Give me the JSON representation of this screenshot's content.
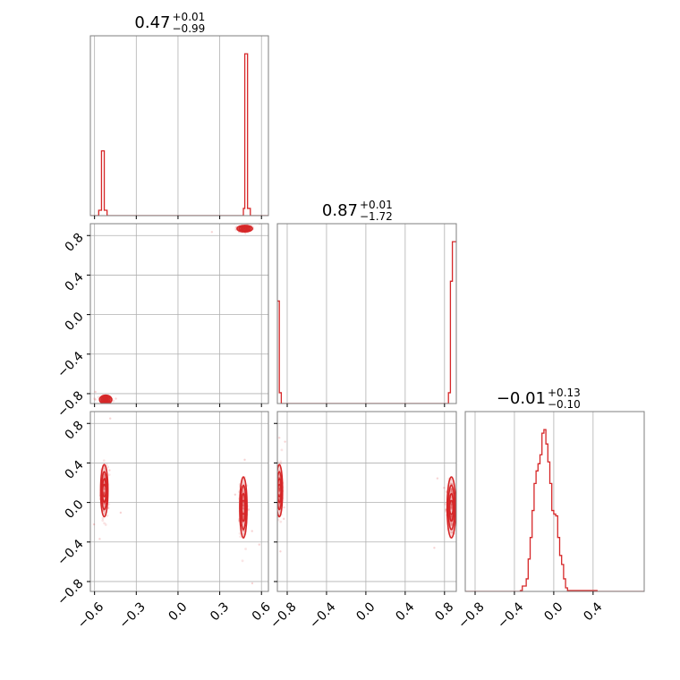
{
  "chart_data": {
    "type": "corner",
    "color": "#d62728",
    "grid": true,
    "panels": [
      {
        "id": "hist-0",
        "type": "histogram",
        "x_range": [
          -0.63,
          0.65
        ],
        "x_ticks": [
          -0.6,
          -0.3,
          0.0,
          0.3,
          0.6
        ],
        "title": {
          "value": "0.47",
          "plus": "+0.01",
          "minus": "−0.99"
        },
        "steps": [
          [
            -0.63,
            0
          ],
          [
            -0.57,
            0.03
          ],
          [
            -0.55,
            0.36
          ],
          [
            -0.53,
            0.03
          ],
          [
            -0.51,
            0
          ],
          [
            0.45,
            0
          ],
          [
            0.47,
            0.04
          ],
          [
            0.48,
            0.9
          ],
          [
            0.5,
            0.04
          ],
          [
            0.52,
            0
          ],
          [
            0.65,
            0
          ]
        ]
      },
      {
        "id": "scatter-1-0",
        "type": "contour",
        "x_range": [
          -0.63,
          0.65
        ],
        "y_range": [
          -0.9,
          0.92
        ],
        "x_ticks": [
          -0.6,
          -0.3,
          0.0,
          0.3,
          0.6
        ],
        "y_ticks": [
          -0.8,
          -0.4,
          0.0,
          0.4,
          0.8
        ],
        "y_tick_labels": [
          "−0.8",
          "−0.4",
          "0.0",
          "0.4",
          "0.8"
        ],
        "clusters": [
          {
            "x": -0.52,
            "y": -0.86,
            "sx": 0.02,
            "sy": 0.02
          },
          {
            "x": 0.48,
            "y": 0.87,
            "sx": 0.025,
            "sy": 0.015
          }
        ]
      },
      {
        "id": "hist-1",
        "type": "histogram",
        "x_range": [
          -0.9,
          0.92
        ],
        "x_ticks": [
          -0.8,
          -0.4,
          0.0,
          0.4,
          0.8
        ],
        "title": {
          "value": "0.87",
          "plus": "+0.01",
          "minus": "−1.72"
        },
        "steps": [
          [
            -0.9,
            0.57
          ],
          [
            -0.88,
            0.06
          ],
          [
            -0.86,
            0
          ],
          [
            0.84,
            0
          ],
          [
            0.84,
            0.06
          ],
          [
            0.86,
            0.68
          ],
          [
            0.88,
            0.9
          ],
          [
            0.92,
            0.9
          ]
        ]
      },
      {
        "id": "scatter-2-0",
        "type": "contour",
        "x_range": [
          -0.63,
          0.65
        ],
        "y_range": [
          -0.9,
          0.92
        ],
        "x_ticks": [
          -0.6,
          -0.3,
          0.0,
          0.3,
          0.6
        ],
        "x_tick_labels": [
          "−0.6",
          "−0.3",
          "0.0",
          "0.3",
          "0.6"
        ],
        "y_ticks": [
          -0.8,
          -0.4,
          0.0,
          0.4,
          0.8
        ],
        "y_tick_labels": [
          "−0.8",
          "−0.4",
          "0.0",
          "0.4",
          "0.8"
        ],
        "clusters": [
          {
            "x": -0.53,
            "y": 0.12,
            "sx": 0.012,
            "sy": 0.12
          },
          {
            "x": 0.47,
            "y": -0.05,
            "sx": 0.012,
            "sy": 0.14
          }
        ]
      },
      {
        "id": "scatter-2-1",
        "type": "contour",
        "x_range": [
          -0.9,
          0.92
        ],
        "y_range": [
          -0.9,
          0.92
        ],
        "x_ticks": [
          -0.8,
          -0.4,
          0.0,
          0.4,
          0.8
        ],
        "x_tick_labels": [
          "−0.8",
          "−0.4",
          "0.0",
          "0.4",
          "0.8"
        ],
        "y_ticks": [
          -0.8,
          -0.4,
          0.0,
          0.4,
          0.8
        ],
        "clusters": [
          {
            "x": -0.88,
            "y": 0.12,
            "sx": 0.015,
            "sy": 0.12
          },
          {
            "x": 0.87,
            "y": -0.05,
            "sx": 0.02,
            "sy": 0.14
          }
        ]
      },
      {
        "id": "hist-2",
        "type": "histogram",
        "x_range": [
          -0.9,
          0.92
        ],
        "x_ticks": [
          -0.8,
          -0.4,
          0.0,
          0.4
        ],
        "x_tick_labels": [
          "−0.8",
          "−0.4",
          "0.0",
          "0.4"
        ],
        "title": {
          "value": "−0.01",
          "plus": "+0.13",
          "minus": "−0.10"
        },
        "gaussian": {
          "mean": -0.01,
          "sd": 0.11,
          "peak": 0.9
        },
        "steps": [
          [
            -0.9,
            0
          ],
          [
            -0.34,
            0
          ],
          [
            -0.34,
            0.005
          ],
          [
            -0.32,
            0.005
          ],
          [
            -0.32,
            0.03
          ],
          [
            -0.28,
            0.03
          ],
          [
            -0.28,
            0.07
          ],
          [
            -0.26,
            0.07
          ],
          [
            -0.26,
            0.18
          ],
          [
            -0.24,
            0.18
          ],
          [
            -0.24,
            0.3
          ],
          [
            -0.22,
            0.3
          ],
          [
            -0.22,
            0.45
          ],
          [
            -0.2,
            0.45
          ],
          [
            -0.2,
            0.6
          ],
          [
            -0.18,
            0.6
          ],
          [
            -0.18,
            0.67
          ],
          [
            -0.16,
            0.67
          ],
          [
            -0.16,
            0.71
          ],
          [
            -0.14,
            0.71
          ],
          [
            -0.14,
            0.76
          ],
          [
            -0.12,
            0.76
          ],
          [
            -0.12,
            0.88
          ],
          [
            -0.1,
            0.88
          ],
          [
            -0.1,
            0.9
          ],
          [
            -0.08,
            0.9
          ],
          [
            -0.08,
            0.82
          ],
          [
            -0.06,
            0.82
          ],
          [
            -0.06,
            0.72
          ],
          [
            -0.04,
            0.72
          ],
          [
            -0.04,
            0.6
          ],
          [
            -0.02,
            0.6
          ],
          [
            -0.02,
            0.45
          ],
          [
            0.0,
            0.45
          ],
          [
            0.0,
            0.43
          ],
          [
            0.02,
            0.43
          ],
          [
            0.02,
            0.42
          ],
          [
            0.04,
            0.42
          ],
          [
            0.04,
            0.3
          ],
          [
            0.06,
            0.3
          ],
          [
            0.06,
            0.2
          ],
          [
            0.08,
            0.2
          ],
          [
            0.08,
            0.15
          ],
          [
            0.1,
            0.15
          ],
          [
            0.1,
            0.07
          ],
          [
            0.12,
            0.07
          ],
          [
            0.12,
            0.02
          ],
          [
            0.14,
            0.02
          ],
          [
            0.14,
            0.005
          ],
          [
            0.44,
            0.005
          ],
          [
            0.44,
            0
          ],
          [
            0.92,
            0
          ]
        ]
      }
    ]
  }
}
